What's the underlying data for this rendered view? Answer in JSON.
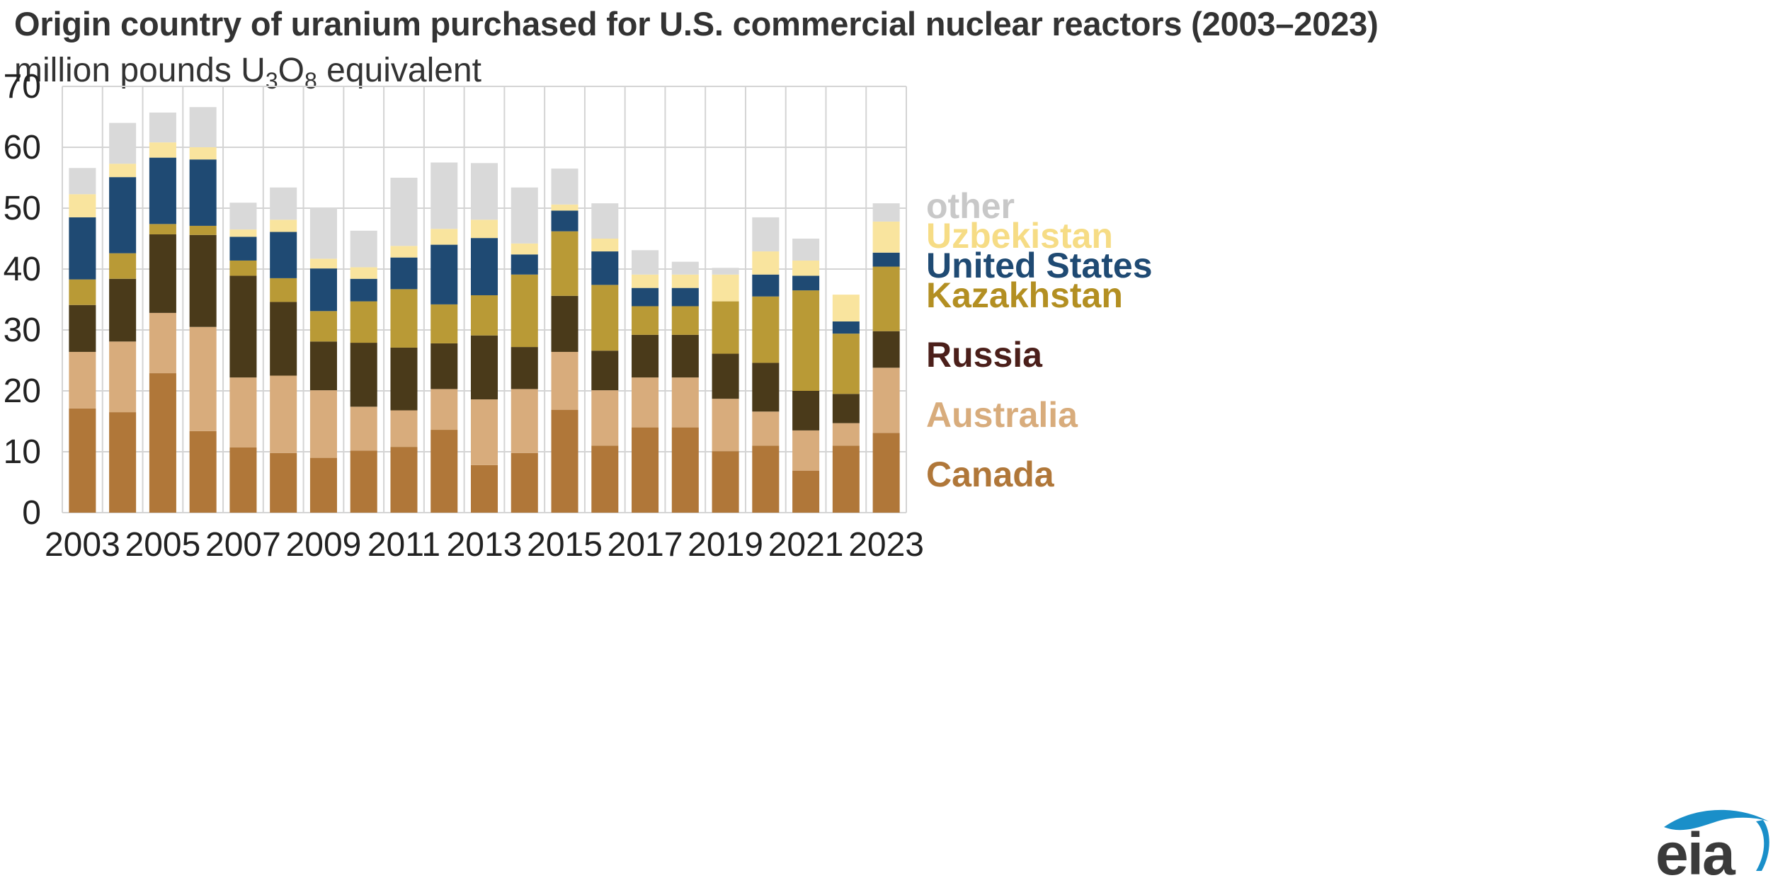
{
  "chart_data": {
    "type": "bar",
    "stacked": true,
    "title": "Origin country of uranium purchased for U.S. commercial nuclear reactors (2003–2023)",
    "subtitle": {
      "prefix": "million pounds U",
      "sub1": "3",
      "mid": "O",
      "sub2": "8",
      "suffix": " equivalent"
    },
    "categories": [
      "2003",
      "2004",
      "2005",
      "2006",
      "2007",
      "2008",
      "2009",
      "2010",
      "2011",
      "2012",
      "2013",
      "2014",
      "2015",
      "2016",
      "2017",
      "2018",
      "2019",
      "2020",
      "2021",
      "2022",
      "2023"
    ],
    "x_tick_labels": [
      "2003",
      "2005",
      "2007",
      "2009",
      "2011",
      "2013",
      "2015",
      "2017",
      "2019",
      "2021",
      "2023"
    ],
    "ylim": [
      0,
      70
    ],
    "y_ticks": [
      0,
      10,
      20,
      30,
      40,
      50,
      60,
      70
    ],
    "grid": true,
    "legend_position": "right",
    "series": [
      {
        "name": "Canada",
        "color": "#b07739",
        "values": [
          17.1,
          16.5,
          22.9,
          13.4,
          10.7,
          9.8,
          9.0,
          10.2,
          10.8,
          13.6,
          7.8,
          9.8,
          16.9,
          11.0,
          14.0,
          14.0,
          10.1,
          11.0,
          6.9,
          11.0,
          13.1
        ]
      },
      {
        "name": "Australia",
        "color": "#d8ac7c",
        "values": [
          9.3,
          11.6,
          9.9,
          17.1,
          11.5,
          12.7,
          11.1,
          7.2,
          6.0,
          6.7,
          10.8,
          10.5,
          9.5,
          9.1,
          8.2,
          8.2,
          8.6,
          5.6,
          6.6,
          3.7,
          10.7
        ]
      },
      {
        "name": "Russia",
        "color": "#4a3a1a",
        "values": [
          7.7,
          10.3,
          12.9,
          15.1,
          16.7,
          12.1,
          8.0,
          10.5,
          10.3,
          7.5,
          10.5,
          6.9,
          9.2,
          6.5,
          7.0,
          7.0,
          7.4,
          8.0,
          6.5,
          4.8,
          6.0
        ]
      },
      {
        "name": "Kazakhstan",
        "color": "#b99a36",
        "values": [
          4.2,
          4.2,
          1.7,
          1.5,
          2.5,
          3.9,
          5.0,
          6.8,
          9.6,
          6.4,
          6.6,
          11.9,
          10.6,
          10.8,
          4.7,
          4.7,
          8.6,
          10.9,
          16.5,
          9.9,
          10.6
        ]
      },
      {
        "name": "United States",
        "color": "#1f4a73",
        "values": [
          10.2,
          12.5,
          10.9,
          10.9,
          3.9,
          7.6,
          7.0,
          3.7,
          5.2,
          9.8,
          9.4,
          3.3,
          3.4,
          5.5,
          3.0,
          3.0,
          0.0,
          3.6,
          2.4,
          2.0,
          2.3
        ]
      },
      {
        "name": "Uzbekistan",
        "color": "#f9e49e",
        "values": [
          3.8,
          2.2,
          2.5,
          2.0,
          1.2,
          2.0,
          1.6,
          1.9,
          1.9,
          2.6,
          3.0,
          1.8,
          1.0,
          2.1,
          2.2,
          2.2,
          4.4,
          3.8,
          2.5,
          4.4,
          5.1
        ]
      },
      {
        "name": "other",
        "color": "#d9d9d9",
        "values": [
          4.3,
          6.7,
          4.9,
          6.6,
          4.4,
          5.3,
          8.4,
          6.0,
          11.2,
          10.9,
          9.3,
          9.2,
          5.9,
          5.8,
          4.0,
          2.1,
          1.1,
          5.6,
          3.6,
          0.0,
          3.0
        ]
      }
    ],
    "legend_order": [
      "other",
      "Uzbekistan",
      "United States",
      "Kazakhstan",
      "Russia",
      "Australia",
      "Canada"
    ],
    "legend_colors": {
      "other": "#c8c8c8",
      "Uzbekistan": "#f6dc85",
      "United States": "#1f4a73",
      "Kazakhstan": "#b38f22",
      "Russia": "#4b1f1a",
      "Australia": "#d8ac7c",
      "Canada": "#b07739"
    }
  },
  "logo": {
    "text": "eia",
    "swoosh_color": "#1a8fc9",
    "text_color": "#3a3a3a"
  }
}
